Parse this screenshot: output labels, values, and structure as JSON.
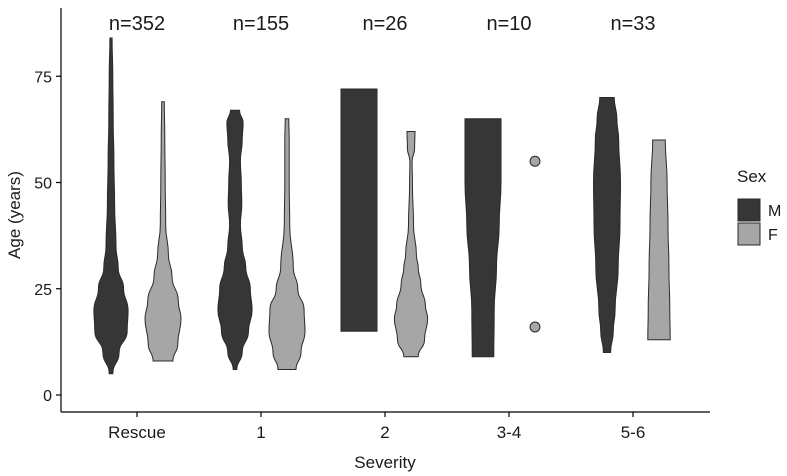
{
  "chart_data": {
    "type": "violin",
    "xlabel": "Severity",
    "ylabel": "Age (years)",
    "ylim": [
      -2,
      88
    ],
    "yticks": [
      0,
      25,
      50,
      75
    ],
    "categories": [
      "Rescue",
      "1",
      "2",
      "3-4",
      "5-6"
    ],
    "counts": [
      "n=352",
      "n=155",
      "n=26",
      "n=10",
      "n=33"
    ],
    "legend": {
      "title": "Sex",
      "position": "right"
    },
    "series": [
      {
        "name": "M",
        "color": "#363636",
        "violins": [
          {
            "category": "Rescue",
            "profile": [
              [
                5,
                0.1
              ],
              [
                10,
                0.45
              ],
              [
                15,
                0.9
              ],
              [
                20,
                0.95
              ],
              [
                25,
                0.7
              ],
              [
                30,
                0.4
              ],
              [
                35,
                0.28
              ],
              [
                45,
                0.2
              ],
              [
                55,
                0.16
              ],
              [
                65,
                0.12
              ],
              [
                75,
                0.1
              ],
              [
                84,
                0.06
              ]
            ]
          },
          {
            "category": "1",
            "profile": [
              [
                6,
                0.1
              ],
              [
                10,
                0.4
              ],
              [
                15,
                0.75
              ],
              [
                20,
                0.95
              ],
              [
                25,
                0.85
              ],
              [
                30,
                0.6
              ],
              [
                35,
                0.4
              ],
              [
                40,
                0.3
              ],
              [
                45,
                0.38
              ],
              [
                50,
                0.35
              ],
              [
                55,
                0.3
              ],
              [
                60,
                0.4
              ],
              [
                64,
                0.45
              ],
              [
                67,
                0.25
              ]
            ]
          },
          {
            "category": "2",
            "profile": [
              [
                15,
                1.0
              ],
              [
                25,
                1.0
              ],
              [
                35,
                1.0
              ],
              [
                45,
                1.0
              ],
              [
                55,
                1.0
              ],
              [
                65,
                1.0
              ],
              [
                72,
                1.0
              ]
            ]
          },
          {
            "category": "3-4",
            "profile": [
              [
                9,
                0.6
              ],
              [
                20,
                0.62
              ],
              [
                30,
                0.75
              ],
              [
                40,
                0.9
              ],
              [
                50,
                1.0
              ],
              [
                58,
                1.0
              ],
              [
                65,
                1.0
              ]
            ]
          },
          {
            "category": "5-6",
            "profile": [
              [
                10,
                0.2
              ],
              [
                15,
                0.35
              ],
              [
                20,
                0.45
              ],
              [
                30,
                0.62
              ],
              [
                40,
                0.72
              ],
              [
                50,
                0.75
              ],
              [
                60,
                0.65
              ],
              [
                65,
                0.55
              ],
              [
                70,
                0.4
              ]
            ]
          }
        ]
      },
      {
        "name": "F",
        "color": "#a6a6a6",
        "violins": [
          {
            "category": "Rescue",
            "profile": [
              [
                8,
                0.55
              ],
              [
                12,
                0.82
              ],
              [
                18,
                1.0
              ],
              [
                22,
                0.85
              ],
              [
                28,
                0.5
              ],
              [
                33,
                0.3
              ],
              [
                40,
                0.15
              ],
              [
                50,
                0.12
              ],
              [
                60,
                0.1
              ],
              [
                69,
                0.07
              ]
            ]
          },
          {
            "category": "1",
            "profile": [
              [
                6,
                0.5
              ],
              [
                10,
                0.78
              ],
              [
                15,
                1.0
              ],
              [
                20,
                0.95
              ],
              [
                25,
                0.6
              ],
              [
                30,
                0.35
              ],
              [
                40,
                0.15
              ],
              [
                50,
                0.12
              ],
              [
                60,
                0.12
              ],
              [
                65,
                0.1
              ]
            ]
          },
          {
            "category": "2",
            "profile": [
              [
                9,
                0.4
              ],
              [
                13,
                0.75
              ],
              [
                18,
                0.92
              ],
              [
                21,
                0.8
              ],
              [
                26,
                0.55
              ],
              [
                30,
                0.4
              ],
              [
                33,
                0.3
              ],
              [
                40,
                0.14
              ],
              [
                50,
                0.08
              ],
              [
                55,
                0.06
              ],
              [
                58,
                0.2
              ],
              [
                62,
                0.22
              ]
            ]
          },
          {
            "category": "5-6",
            "profile": [
              [
                13,
                0.62
              ],
              [
                20,
                0.6
              ],
              [
                30,
                0.55
              ],
              [
                40,
                0.5
              ],
              [
                50,
                0.45
              ],
              [
                60,
                0.35
              ]
            ]
          }
        ],
        "points": [
          {
            "category": "3-4",
            "y": 55
          },
          {
            "category": "3-4",
            "y": 16
          }
        ]
      }
    ]
  }
}
